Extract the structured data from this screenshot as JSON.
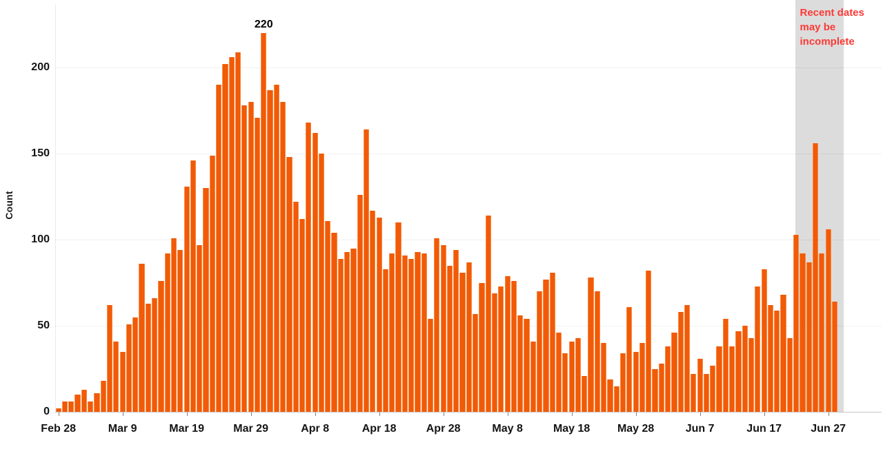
{
  "y_axis": {
    "title": "Count",
    "tick_labels": [
      "0",
      "50",
      "100",
      "150",
      "200"
    ],
    "tick_values": [
      0,
      50,
      100,
      150,
      200
    ]
  },
  "x_axis": {
    "tick_labels": [
      "Feb 28",
      "Mar 9",
      "Mar 19",
      "Mar 29",
      "Apr 8",
      "Apr 18",
      "Apr 28",
      "May 8",
      "May 18",
      "May 28",
      "Jun 7",
      "Jun 17",
      "Jun 27"
    ],
    "tick_indices": [
      0,
      10,
      20,
      30,
      40,
      50,
      60,
      70,
      80,
      90,
      100,
      110,
      120
    ]
  },
  "annotations": {
    "peak_label": "220",
    "peak_index": 32,
    "note_line1": "Recent dates",
    "note_line2": "may be",
    "note_line3": "incomplete"
  },
  "colors": {
    "bar_fill": "#f15a08",
    "bar_edge": "#f78b42",
    "shaded_region": "#dcdcdc",
    "note_text": "#fb3a36",
    "axis_line": "#c4c4c4",
    "gridline": "rgba(0,0,0,0.055)"
  },
  "chart_data": {
    "type": "bar",
    "title": "",
    "xlabel": "",
    "ylabel": "Count",
    "ylim": [
      0,
      230
    ],
    "grid": "faint horizontal gridlines at 50, 100, 150, 200",
    "legend_position": "none",
    "x_unit": "daily dates",
    "x_tick_labels": [
      "Feb 28",
      "Mar 9",
      "Mar 19",
      "Mar 29",
      "Apr 8",
      "Apr 18",
      "Apr 28",
      "May 8",
      "May 18",
      "May 28",
      "Jun 7",
      "Jun 17",
      "Jun 27"
    ],
    "x_tick_indices": [
      0,
      10,
      20,
      30,
      40,
      50,
      60,
      70,
      80,
      90,
      100,
      110,
      120
    ],
    "values": [
      2,
      6,
      6,
      10,
      13,
      6,
      11,
      18,
      62,
      41,
      35,
      51,
      55,
      86,
      63,
      66,
      76,
      92,
      101,
      94,
      131,
      146,
      97,
      130,
      149,
      190,
      202,
      206,
      209,
      178,
      180,
      171,
      220,
      187,
      190,
      180,
      148,
      122,
      112,
      168,
      162,
      150,
      111,
      104,
      89,
      93,
      95,
      126,
      164,
      117,
      113,
      83,
      92,
      110,
      91,
      89,
      93,
      92,
      54,
      101,
      97,
      85,
      94,
      81,
      87,
      57,
      75,
      114,
      69,
      73,
      79,
      76,
      56,
      54,
      41,
      70,
      77,
      81,
      46,
      34,
      41,
      43,
      21,
      78,
      70,
      40,
      19,
      15,
      34,
      61,
      35,
      40,
      82,
      25,
      28,
      38,
      46,
      58,
      62,
      22,
      31,
      22,
      27,
      38,
      54,
      38,
      47,
      50,
      43,
      73,
      83,
      62,
      59,
      68,
      43,
      103,
      92,
      87,
      156,
      92,
      106,
      64
    ],
    "peak_annotation": {
      "index": 32,
      "label": "220"
    },
    "shaded_recent_region": {
      "from_index": 115,
      "note": "Recent dates may be incomplete"
    }
  }
}
